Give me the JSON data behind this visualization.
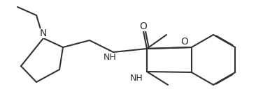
{
  "background_color": "#ffffff",
  "line_color": "#333333",
  "line_width": 1.5,
  "font_size": 9,
  "figsize": [
    3.66,
    1.51
  ],
  "dpi": 100,
  "atoms": {
    "N_label": "N",
    "NH_label": "NH",
    "O_label": "O",
    "O2_label": "O"
  }
}
